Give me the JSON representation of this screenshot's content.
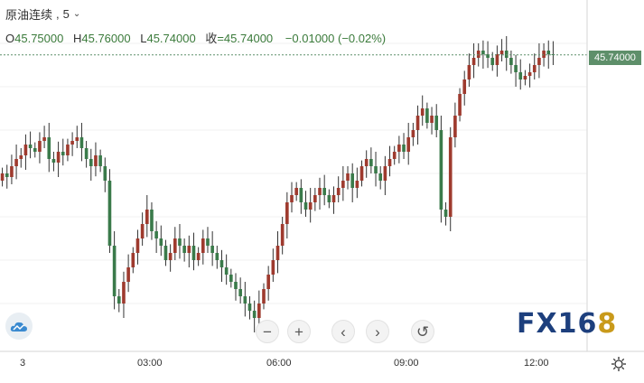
{
  "header": {
    "symbol": "原油连续",
    "interval": "5",
    "open_label": "O",
    "open": "45.75000",
    "high_label": "H",
    "high": "45.76000",
    "low_label": "L",
    "low": "45.74000",
    "close_label": "收",
    "close": "=45.74000",
    "change": "−0.01000 (−0.02%)"
  },
  "price_tag": "45.74000",
  "x_axis": {
    "ticks": [
      "3",
      "03:00",
      "06:00",
      "09:00",
      "12:00"
    ]
  },
  "controls": {
    "zoom_out": "−",
    "zoom_in": "+",
    "prev": "‹",
    "next": "›",
    "reset": "↺"
  },
  "brand": {
    "text": "FX16",
    "accent": "8"
  },
  "colors": {
    "up": "#9e3a2e",
    "down": "#3a7a4a",
    "price_line": "#5e8f6a",
    "grid": "#f2f2f2"
  },
  "chart_data": {
    "type": "candlestick",
    "last_price": 45.74,
    "y_axis_labels_visible": false,
    "series_close": [
      44.1,
      44.05,
      44.2,
      44.3,
      44.35,
      44.5,
      44.45,
      44.4,
      44.55,
      44.6,
      44.3,
      44.25,
      44.4,
      44.35,
      44.5,
      44.55,
      44.6,
      44.45,
      44.3,
      44.2,
      44.35,
      44.2,
      44.0,
      43.1,
      42.4,
      42.3,
      42.6,
      42.8,
      43.0,
      43.2,
      43.4,
      43.6,
      43.3,
      43.2,
      43.1,
      42.9,
      43.0,
      43.2,
      43.1,
      43.0,
      43.1,
      42.9,
      43.0,
      43.2,
      43.1,
      43.0,
      42.9,
      42.8,
      42.7,
      42.6,
      42.5,
      42.4,
      42.3,
      42.2,
      42.1,
      42.3,
      42.5,
      42.7,
      42.9,
      43.1,
      43.4,
      43.7,
      43.8,
      43.9,
      43.7,
      43.6,
      43.7,
      43.8,
      43.9,
      43.8,
      43.7,
      43.8,
      43.9,
      44.0,
      44.1,
      43.9,
      44.0,
      44.2,
      44.3,
      44.2,
      44.1,
      44.0,
      44.2,
      44.3,
      44.4,
      44.5,
      44.4,
      44.6,
      44.7,
      44.9,
      45.0,
      44.8,
      44.9,
      44.7,
      43.6,
      43.5,
      44.6,
      44.9,
      45.2,
      45.4,
      45.6,
      45.7,
      45.8,
      45.75,
      45.7,
      45.6,
      45.75,
      45.8,
      45.7,
      45.6,
      45.5,
      45.4,
      45.45,
      45.5,
      45.6,
      45.7,
      45.8,
      45.75,
      45.74
    ]
  }
}
